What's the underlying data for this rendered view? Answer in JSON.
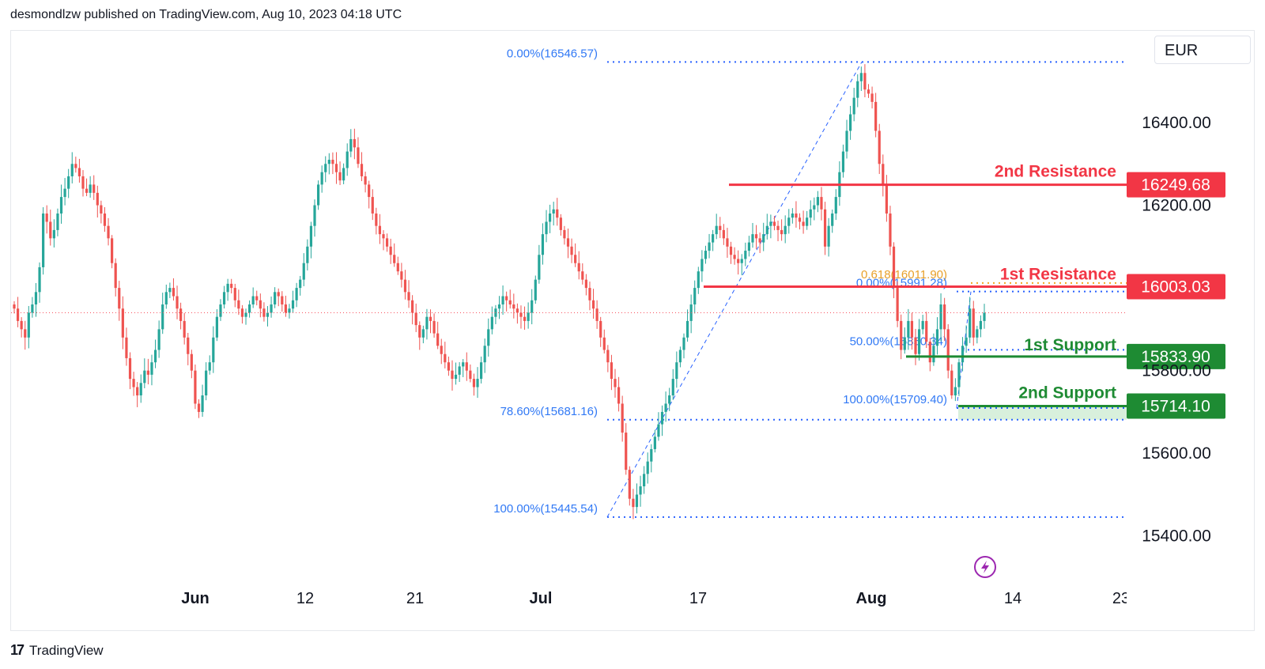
{
  "header": {
    "text": "desmondlzw published on TradingView.com, Aug 10, 2023 04:18 UTC"
  },
  "currency": {
    "label": "EUR"
  },
  "footer": {
    "brand": "TradingView",
    "logo_glyph": "17"
  },
  "colors": {
    "up": "#26a69a",
    "down": "#ef5350",
    "resistance": "#f23645",
    "support": "#1e8b33",
    "fib": "#2962ff",
    "fib_text": "#3179f5",
    "golden": "#f5a623",
    "last": "#f7525f",
    "support_zone": "#d8f0dc",
    "lightning": "#9c27b0"
  },
  "chart_data": {
    "type": "candlestick",
    "y_axis": {
      "min": 15300,
      "max": 16620,
      "ticks": [
        15400.0,
        15600.0,
        15800.0,
        16200.0,
        16400.0
      ],
      "tick_labels": [
        "15400.00",
        "15600.00",
        "15800.00",
        "16200.00",
        "16400.00"
      ]
    },
    "x_axis": {
      "ticks": [
        "Jun",
        "12",
        "21",
        "Jul",
        "17",
        "Aug",
        "14",
        "23"
      ]
    },
    "last_price": 15940,
    "levels": [
      {
        "name": "2nd Resistance",
        "value": 16249.68,
        "label": "16249.68",
        "kind": "resistance"
      },
      {
        "name": "1st Resistance",
        "value": 16003.03,
        "label": "16003.03",
        "kind": "resistance"
      },
      {
        "name": "1st Support",
        "value": 15833.9,
        "label": "15833.90",
        "kind": "support"
      },
      {
        "name": "2nd Support",
        "value": 15714.1,
        "label": "15714.10",
        "kind": "support"
      }
    ],
    "fib_primary": [
      {
        "label": "0.00%(16546.57)",
        "value": 16546.57
      },
      {
        "label": "78.60%(15681.16)",
        "value": 15681.16
      },
      {
        "label": "100.00%(15445.54)",
        "value": 15445.54
      }
    ],
    "fib_secondary": [
      {
        "label": "0.618(16011.90)",
        "value": 16011.9,
        "golden": true
      },
      {
        "label": "0.00%(15991.28)",
        "value": 15991.28
      },
      {
        "label": "50.00%(15850.34)",
        "value": 15850.34
      },
      {
        "label": "100.00%(15709.40)",
        "value": 15709.4
      }
    ],
    "series_close": [
      15950,
      15920,
      15900,
      15880,
      15940,
      15960,
      15990,
      16050,
      16180,
      16160,
      16120,
      16140,
      16180,
      16220,
      16240,
      16270,
      16300,
      16290,
      16270,
      16240,
      16230,
      16250,
      16230,
      16200,
      16180,
      16150,
      16120,
      16060,
      16000,
      15950,
      15880,
      15830,
      15780,
      15760,
      15740,
      15770,
      15800,
      15790,
      15820,
      15850,
      15900,
      15960,
      15990,
      16000,
      15980,
      15950,
      15920,
      15880,
      15840,
      15800,
      15720,
      15700,
      15740,
      15800,
      15820,
      15880,
      15930,
      15960,
      15990,
      16010,
      16000,
      15970,
      15950,
      15930,
      15940,
      15960,
      15980,
      15970,
      15950,
      15930,
      15940,
      15960,
      15990,
      15980,
      15960,
      15940,
      15950,
      15970,
      16000,
      16020,
      16060,
      16100,
      16150,
      16200,
      16250,
      16280,
      16300,
      16310,
      16300,
      16280,
      16260,
      16290,
      16330,
      16360,
      16340,
      16300,
      16270,
      16250,
      16220,
      16180,
      16150,
      16130,
      16120,
      16100,
      16080,
      16060,
      16040,
      16020,
      15990,
      15970,
      15940,
      15910,
      15880,
      15900,
      15930,
      15920,
      15890,
      15860,
      15840,
      15820,
      15800,
      15780,
      15790,
      15810,
      15820,
      15800,
      15780,
      15760,
      15780,
      15820,
      15860,
      15900,
      15930,
      15950,
      15960,
      15980,
      15970,
      15960,
      15950,
      15940,
      15930,
      15920,
      15940,
      15970,
      16020,
      16080,
      16130,
      16160,
      16180,
      16190,
      16170,
      16140,
      16120,
      16100,
      16080,
      16060,
      16040,
      16020,
      16000,
      15970,
      15950,
      15920,
      15880,
      15850,
      15820,
      15780,
      15760,
      15720,
      15650,
      15560,
      15490,
      15470,
      15500,
      15520,
      15550,
      15580,
      15610,
      15640,
      15670,
      15700,
      15720,
      15740,
      15780,
      15820,
      15850,
      15880,
      15920,
      15960,
      16000,
      16040,
      16070,
      16090,
      16110,
      16130,
      16150,
      16140,
      16120,
      16100,
      16080,
      16070,
      16060,
      16070,
      16090,
      16110,
      16130,
      16120,
      16110,
      16130,
      16150,
      16160,
      16150,
      16140,
      16130,
      16150,
      16170,
      16180,
      16170,
      16160,
      16150,
      16170,
      16190,
      16200,
      16220,
      16190,
      16100,
      16150,
      16180,
      16220,
      16280,
      16330,
      16380,
      16420,
      16460,
      16500,
      16520,
      16480,
      16470,
      16450,
      16380,
      16300,
      16250,
      16180,
      16100,
      16000,
      15920,
      15850,
      15880,
      15920,
      15880,
      15840,
      15900,
      15920,
      15870,
      15820,
      15860,
      15900,
      15960,
      15900,
      15800,
      15740,
      15760,
      15820,
      15860,
      15880,
      15950,
      15880,
      15900,
      15920,
      15940
    ]
  }
}
